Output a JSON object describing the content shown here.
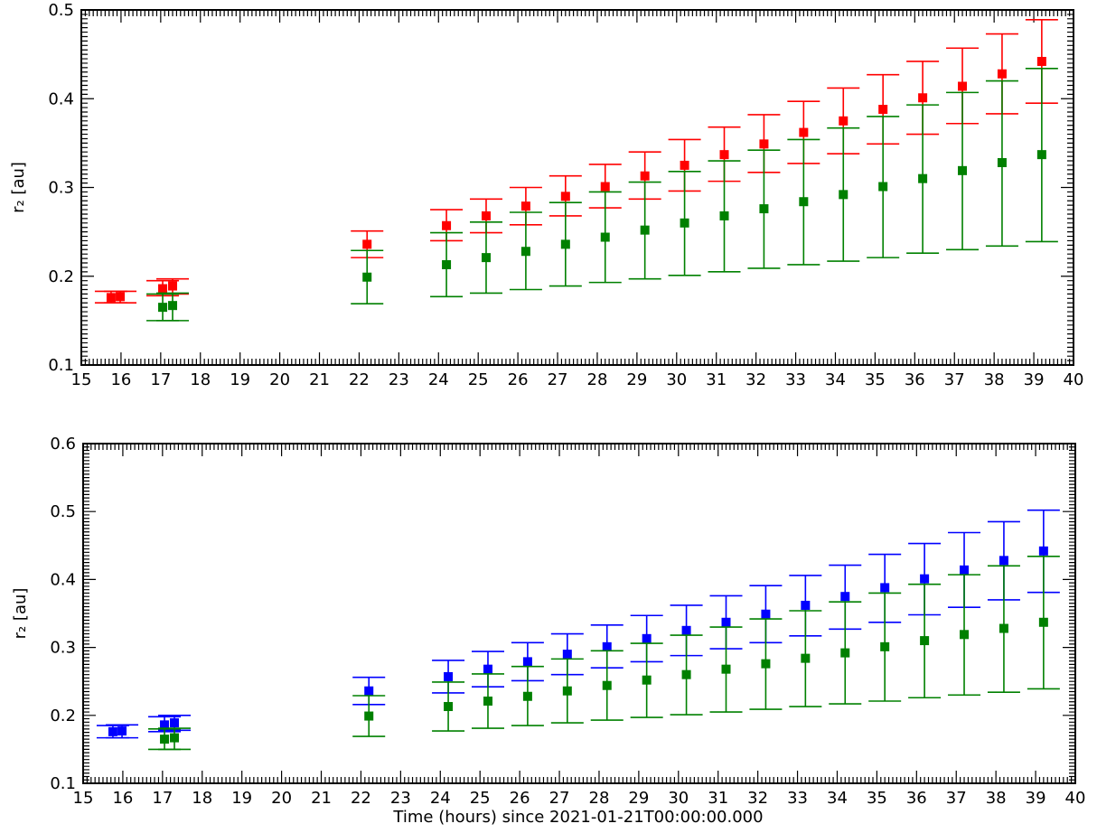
{
  "colors": {
    "red": "#ff0000",
    "green": "#008000",
    "blue": "#0000ff",
    "frame": "#000000"
  },
  "xlabel": "Time (hours) since 2021-01-21T00:00:00.000",
  "chart_data": [
    {
      "type": "scatter",
      "title": "",
      "ylabel": "r₂ [au]",
      "xlim": [
        15,
        40
      ],
      "ylim": [
        0.1,
        0.5
      ],
      "xticks": [
        "15",
        "16",
        "17",
        "18",
        "19",
        "20",
        "21",
        "22",
        "23",
        "24",
        "25",
        "26",
        "27",
        "28",
        "29",
        "30",
        "31",
        "32",
        "33",
        "34",
        "35",
        "36",
        "37",
        "38",
        "39",
        "40"
      ],
      "yticks": [
        "0.1",
        "0.2",
        "0.3",
        "0.4",
        "0.5"
      ],
      "grid": false,
      "series": [
        {
          "color": "red",
          "x": [
            15.75,
            15.98,
            17.05,
            17.3,
            22.2,
            24.2,
            25.2,
            26.2,
            27.2,
            28.2,
            29.2,
            30.2,
            31.2,
            32.2,
            33.2,
            34.2,
            35.2,
            36.2,
            37.2,
            38.2,
            39.2
          ],
          "y": [
            0.176,
            0.177,
            0.186,
            0.189,
            0.236,
            0.257,
            0.268,
            0.279,
            0.29,
            0.301,
            0.313,
            0.325,
            0.337,
            0.349,
            0.362,
            0.375,
            0.388,
            0.401,
            0.414,
            0.428,
            0.442
          ],
          "lo": [
            0.17,
            0.17,
            0.178,
            0.18,
            0.221,
            0.24,
            0.249,
            0.258,
            0.268,
            0.277,
            0.287,
            0.296,
            0.307,
            0.317,
            0.327,
            0.338,
            0.349,
            0.36,
            0.372,
            0.383,
            0.395
          ],
          "hi": [
            0.183,
            0.183,
            0.195,
            0.197,
            0.251,
            0.275,
            0.287,
            0.3,
            0.313,
            0.326,
            0.34,
            0.354,
            0.368,
            0.382,
            0.397,
            0.412,
            0.427,
            0.442,
            0.457,
            0.473,
            0.489
          ]
        },
        {
          "color": "green",
          "x": [
            17.05,
            17.3,
            22.2,
            24.2,
            25.2,
            26.2,
            27.2,
            28.2,
            29.2,
            30.2,
            31.2,
            32.2,
            33.2,
            34.2,
            35.2,
            36.2,
            37.2,
            38.2,
            39.2
          ],
          "y": [
            0.165,
            0.167,
            0.199,
            0.213,
            0.221,
            0.228,
            0.236,
            0.244,
            0.252,
            0.26,
            0.268,
            0.276,
            0.284,
            0.292,
            0.301,
            0.31,
            0.319,
            0.328,
            0.337
          ],
          "lo": [
            0.15,
            0.15,
            0.169,
            0.177,
            0.181,
            0.185,
            0.189,
            0.193,
            0.197,
            0.201,
            0.205,
            0.209,
            0.213,
            0.217,
            0.221,
            0.226,
            0.23,
            0.234,
            0.239
          ],
          "hi": [
            0.18,
            0.181,
            0.229,
            0.249,
            0.261,
            0.272,
            0.283,
            0.295,
            0.306,
            0.318,
            0.33,
            0.342,
            0.354,
            0.367,
            0.38,
            0.393,
            0.407,
            0.42,
            0.434
          ]
        }
      ]
    },
    {
      "type": "scatter",
      "title": "",
      "ylabel": "r₂ [au]",
      "xlim": [
        15,
        40
      ],
      "ylim": [
        0.1,
        0.6
      ],
      "xticks": [
        "15",
        "16",
        "17",
        "18",
        "19",
        "20",
        "21",
        "22",
        "23",
        "24",
        "25",
        "26",
        "27",
        "28",
        "29",
        "30",
        "31",
        "32",
        "33",
        "34",
        "35",
        "36",
        "37",
        "38",
        "39",
        "40"
      ],
      "yticks": [
        "0.1",
        "0.2",
        "0.3",
        "0.4",
        "0.5",
        "0.6"
      ],
      "grid": false,
      "series": [
        {
          "color": "blue",
          "x": [
            15.75,
            15.98,
            17.05,
            17.3,
            22.2,
            24.2,
            25.2,
            26.2,
            27.2,
            28.2,
            29.2,
            30.2,
            31.2,
            32.2,
            33.2,
            34.2,
            35.2,
            36.2,
            37.2,
            38.2,
            39.2
          ],
          "y": [
            0.176,
            0.177,
            0.186,
            0.189,
            0.236,
            0.257,
            0.268,
            0.279,
            0.29,
            0.301,
            0.313,
            0.325,
            0.337,
            0.349,
            0.362,
            0.375,
            0.388,
            0.401,
            0.414,
            0.428,
            0.442
          ],
          "lo": [
            0.167,
            0.167,
            0.176,
            0.178,
            0.216,
            0.233,
            0.242,
            0.251,
            0.26,
            0.27,
            0.279,
            0.288,
            0.298,
            0.307,
            0.317,
            0.327,
            0.337,
            0.348,
            0.359,
            0.37,
            0.381
          ],
          "hi": [
            0.185,
            0.186,
            0.198,
            0.2,
            0.256,
            0.281,
            0.294,
            0.307,
            0.32,
            0.333,
            0.347,
            0.362,
            0.376,
            0.391,
            0.406,
            0.421,
            0.437,
            0.453,
            0.469,
            0.485,
            0.502
          ]
        },
        {
          "color": "green",
          "x": [
            17.05,
            17.3,
            22.2,
            24.2,
            25.2,
            26.2,
            27.2,
            28.2,
            29.2,
            30.2,
            31.2,
            32.2,
            33.2,
            34.2,
            35.2,
            36.2,
            37.2,
            38.2,
            39.2
          ],
          "y": [
            0.165,
            0.167,
            0.199,
            0.213,
            0.221,
            0.228,
            0.236,
            0.244,
            0.252,
            0.26,
            0.268,
            0.276,
            0.284,
            0.292,
            0.301,
            0.31,
            0.319,
            0.328,
            0.337
          ],
          "lo": [
            0.15,
            0.15,
            0.169,
            0.177,
            0.181,
            0.185,
            0.189,
            0.193,
            0.197,
            0.201,
            0.205,
            0.209,
            0.213,
            0.217,
            0.221,
            0.226,
            0.23,
            0.234,
            0.239
          ],
          "hi": [
            0.18,
            0.181,
            0.229,
            0.249,
            0.261,
            0.272,
            0.283,
            0.295,
            0.306,
            0.318,
            0.33,
            0.342,
            0.354,
            0.367,
            0.38,
            0.393,
            0.407,
            0.42,
            0.434
          ]
        }
      ]
    }
  ]
}
